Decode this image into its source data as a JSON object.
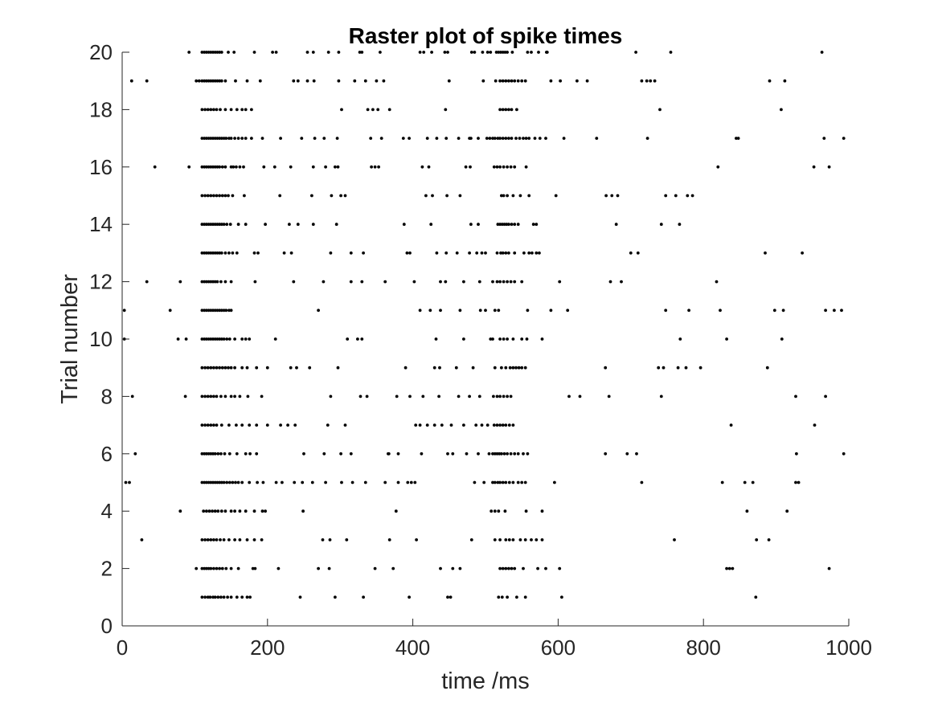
{
  "chart_data": {
    "type": "scatter",
    "title": "Raster plot of spike times",
    "xlabel": "time /ms",
    "ylabel": "Trial number",
    "xlim": [
      0,
      1000
    ],
    "ylim": [
      0,
      20
    ],
    "xticks": [
      0,
      200,
      400,
      600,
      800,
      1000
    ],
    "yticks": [
      0,
      2,
      4,
      6,
      8,
      10,
      12,
      14,
      16,
      18,
      20
    ],
    "grid": false,
    "marker_color": "#000000",
    "series": [
      {
        "trial": 1,
        "x": [
          110,
          114,
          118,
          121,
          125,
          128,
          132,
          136,
          140,
          145,
          150,
          158,
          165,
          172,
          176,
          245,
          293,
          332,
          395,
          448,
          452,
          518,
          523,
          530,
          543,
          555,
          605,
          872
        ]
      },
      {
        "trial": 2,
        "x": [
          102,
          110,
          113,
          116,
          119,
          122,
          126,
          130,
          134,
          138,
          143,
          150,
          160,
          180,
          183,
          215,
          270,
          285,
          348,
          373,
          438,
          455,
          465,
          520,
          524,
          528,
          532,
          536,
          540,
          552,
          572,
          583,
          602,
          832,
          836,
          840,
          973
        ]
      },
      {
        "trial": 3,
        "x": [
          27,
          110,
          114,
          118,
          122,
          126,
          130,
          135,
          140,
          147,
          155,
          162,
          172,
          182,
          192,
          276,
          286,
          309,
          368,
          405,
          481,
          513,
          520,
          528,
          533,
          538,
          548,
          555,
          563,
          570,
          578,
          760,
          873,
          890
        ]
      },
      {
        "trial": 4,
        "x": [
          80,
          112,
          116,
          120,
          124,
          128,
          132,
          137,
          142,
          150,
          155,
          162,
          170,
          182,
          193,
          197,
          249,
          377,
          508,
          513,
          518,
          527,
          556,
          578,
          860,
          915
        ]
      },
      {
        "trial": 5,
        "x": [
          5,
          10,
          110,
          113,
          116,
          119,
          122,
          125,
          128,
          131,
          134,
          137,
          140,
          144,
          148,
          152,
          156,
          160,
          165,
          175,
          186,
          194,
          212,
          220,
          237,
          248,
          262,
          280,
          302,
          317,
          335,
          362,
          380,
          393,
          398,
          403,
          485,
          498,
          510,
          513,
          517,
          520,
          524,
          528,
          533,
          538,
          545,
          550,
          555,
          595,
          715,
          826,
          857,
          868,
          927,
          931
        ]
      },
      {
        "trial": 6,
        "x": [
          18,
          110,
          113,
          116,
          119,
          122,
          125,
          128,
          132,
          136,
          141,
          148,
          158,
          170,
          176,
          185,
          250,
          278,
          301,
          315,
          366,
          367,
          380,
          412,
          448,
          455,
          474,
          490,
          505,
          510,
          513,
          516,
          519,
          522,
          526,
          530,
          535,
          540,
          545,
          552,
          558,
          665,
          695,
          708,
          928,
          993
        ]
      },
      {
        "trial": 7,
        "x": [
          110,
          114,
          118,
          122,
          126,
          130,
          137,
          147,
          157,
          165,
          175,
          185,
          200,
          218,
          228,
          238,
          283,
          307,
          404,
          410,
          420,
          430,
          440,
          453,
          470,
          487,
          495,
          503,
          512,
          516,
          520,
          524,
          528,
          533,
          538,
          838,
          953
        ]
      },
      {
        "trial": 8,
        "x": [
          14,
          87,
          110,
          114,
          118,
          122,
          126,
          130,
          136,
          142,
          150,
          155,
          162,
          173,
          192,
          287,
          328,
          337,
          378,
          396,
          414,
          436,
          463,
          478,
          492,
          511,
          516,
          520,
          525,
          530,
          535,
          615,
          630,
          670,
          742,
          927,
          968
        ]
      },
      {
        "trial": 9,
        "x": [
          110,
          114,
          118,
          122,
          126,
          130,
          134,
          138,
          142,
          146,
          150,
          155,
          165,
          172,
          185,
          200,
          232,
          240,
          258,
          297,
          390,
          430,
          437,
          460,
          483,
          513,
          522,
          528,
          534,
          538,
          542,
          546,
          550,
          555,
          665,
          738,
          745,
          765,
          776,
          796,
          888
        ]
      },
      {
        "trial": 10,
        "x": [
          3,
          77,
          88,
          110,
          113,
          116,
          119,
          122,
          125,
          128,
          131,
          134,
          137,
          140,
          144,
          148,
          155,
          165,
          170,
          175,
          211,
          310,
          324,
          330,
          432,
          470,
          507,
          510,
          520,
          525,
          530,
          538,
          550,
          557,
          578,
          768,
          832,
          908
        ]
      },
      {
        "trial": 11,
        "x": [
          3,
          66,
          110,
          113,
          116,
          119,
          122,
          125,
          128,
          131,
          134,
          137,
          140,
          143,
          147,
          150,
          270,
          410,
          424,
          438,
          465,
          493,
          500,
          513,
          518,
          558,
          590,
          613,
          748,
          780,
          823,
          898,
          910,
          968,
          980,
          990
        ]
      },
      {
        "trial": 12,
        "x": [
          34,
          80,
          110,
          113,
          116,
          119,
          122,
          125,
          128,
          131,
          136,
          142,
          150,
          183,
          236,
          277,
          315,
          330,
          362,
          402,
          438,
          445,
          470,
          492,
          510,
          516,
          520,
          525,
          530,
          535,
          540,
          550,
          602,
          672,
          687,
          818
        ]
      },
      {
        "trial": 13,
        "x": [
          110,
          113,
          116,
          119,
          122,
          125,
          128,
          131,
          134,
          137,
          142,
          147,
          152,
          158,
          182,
          187,
          223,
          233,
          287,
          315,
          332,
          392,
          396,
          433,
          446,
          461,
          478,
          488,
          495,
          500,
          516,
          521,
          524,
          528,
          532,
          540,
          553,
          560,
          564,
          570,
          574,
          700,
          710,
          885,
          936
        ]
      },
      {
        "trial": 14,
        "x": [
          110,
          113,
          116,
          119,
          122,
          125,
          128,
          131,
          134,
          137,
          140,
          144,
          149,
          160,
          170,
          197,
          230,
          242,
          263,
          295,
          388,
          425,
          480,
          490,
          517,
          520,
          523,
          526,
          529,
          532,
          536,
          540,
          545,
          566,
          570,
          680,
          742,
          767
        ]
      },
      {
        "trial": 15,
        "x": [
          110,
          114,
          118,
          122,
          126,
          130,
          134,
          138,
          142,
          146,
          152,
          168,
          217,
          261,
          288,
          301,
          307,
          418,
          427,
          447,
          465,
          522,
          525,
          530,
          538,
          548,
          560,
          597,
          666,
          674,
          682,
          748,
          762,
          778,
          785
        ]
      },
      {
        "trial": 16,
        "x": [
          45,
          92,
          110,
          113,
          116,
          119,
          122,
          125,
          128,
          131,
          134,
          138,
          142,
          150,
          153,
          157,
          162,
          167,
          195,
          210,
          232,
          263,
          280,
          293,
          297,
          343,
          348,
          353,
          413,
          422,
          473,
          479,
          512,
          516,
          520,
          525,
          530,
          535,
          540,
          556,
          820,
          952,
          973
        ]
      },
      {
        "trial": 17,
        "x": [
          110,
          113,
          116,
          119,
          122,
          125,
          128,
          131,
          134,
          137,
          140,
          143,
          147,
          150,
          155,
          160,
          165,
          170,
          178,
          193,
          218,
          247,
          265,
          278,
          296,
          342,
          357,
          387,
          395,
          420,
          433,
          446,
          463,
          478,
          480,
          490,
          502,
          506,
          510,
          513,
          517,
          520,
          524,
          528,
          532,
          536,
          542,
          547,
          552,
          556,
          560,
          568,
          575,
          583,
          608,
          653,
          723,
          845,
          848,
          966,
          993
        ]
      },
      {
        "trial": 18,
        "x": [
          110,
          114,
          118,
          122,
          126,
          130,
          135,
          142,
          150,
          158,
          165,
          170,
          178,
          302,
          338,
          345,
          352,
          368,
          445,
          520,
          524,
          528,
          532,
          536,
          543,
          740,
          907
        ]
      },
      {
        "trial": 19,
        "x": [
          13,
          34,
          102,
          106,
          110,
          113,
          116,
          119,
          122,
          125,
          128,
          131,
          134,
          137,
          142,
          156,
          172,
          190,
          236,
          242,
          255,
          264,
          298,
          320,
          335,
          350,
          360,
          450,
          497,
          514,
          520,
          524,
          528,
          532,
          536,
          540,
          545,
          550,
          555,
          590,
          603,
          626,
          640,
          715,
          722,
          727,
          733,
          891,
          912
        ]
      },
      {
        "trial": 20,
        "x": [
          92,
          110,
          113,
          116,
          119,
          122,
          125,
          128,
          131,
          134,
          137,
          146,
          154,
          182,
          207,
          212,
          255,
          263,
          284,
          298,
          327,
          330,
          355,
          410,
          415,
          426,
          444,
          448,
          481,
          485,
          496,
          503,
          507,
          515,
          518,
          521,
          524,
          527,
          530,
          537,
          558,
          563,
          573,
          584,
          585,
          707,
          755,
          963
        ]
      }
    ]
  }
}
